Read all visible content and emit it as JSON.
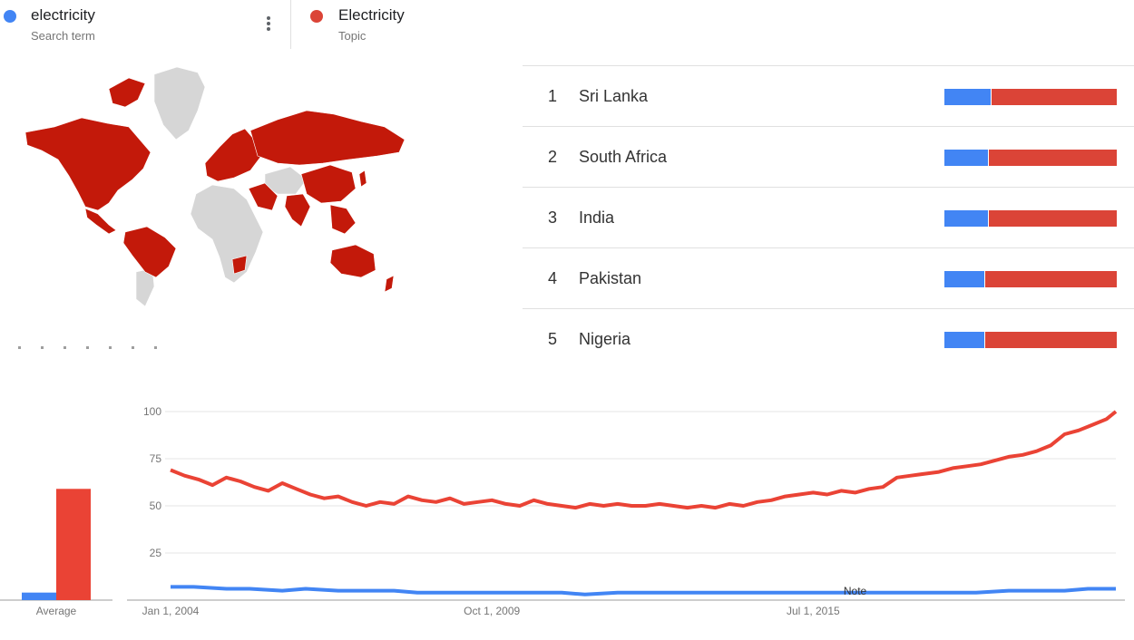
{
  "colors": {
    "series_a": "#4285f4",
    "series_b": "#ea4335",
    "map_fill": "#c3190a",
    "map_other": "#d6d6d6"
  },
  "terms": [
    {
      "name": "electricity",
      "kind": "Search term",
      "color": "#4285f4"
    },
    {
      "name": "Electricity",
      "kind": "Topic",
      "color": "#db4437"
    }
  ],
  "map": {
    "fill_color": "#c3190a",
    "no_data_color": "#d6d6d6"
  },
  "ranking": [
    {
      "rank": "1",
      "country": "Sri Lanka",
      "share_a": 0.27
    },
    {
      "rank": "2",
      "country": "South Africa",
      "share_a": 0.25
    },
    {
      "rank": "3",
      "country": "India",
      "share_a": 0.25
    },
    {
      "rank": "4",
      "country": "Pakistan",
      "share_a": 0.23
    },
    {
      "rank": "5",
      "country": "Nigeria",
      "share_a": 0.23
    }
  ],
  "chart_data": [
    {
      "type": "bar",
      "categories": [
        "Average"
      ],
      "series": [
        {
          "values": [
            4
          ]
        },
        {
          "values": [
            59
          ]
        }
      ],
      "ylim": [
        0,
        100
      ]
    },
    {
      "type": "line",
      "x_tick_labels": [
        "Jan 1, 2004",
        "Oct 1, 2009",
        "Jul 1, 2015"
      ],
      "x_tick_dates": [
        "2004-01",
        "2009-10",
        "2015-07"
      ],
      "yticks": [
        "25",
        "50",
        "75",
        "100"
      ],
      "ylim": [
        0,
        100
      ],
      "xlim": [
        "2004-01",
        "2020-12"
      ],
      "grid": true,
      "annotation": "Note",
      "annotation_date": "2016-04",
      "series": [
        {
          "color": "#4285f4",
          "points": [
            [
              "2004-01",
              7
            ],
            [
              "2004-06",
              7
            ],
            [
              "2005-01",
              6
            ],
            [
              "2005-06",
              6
            ],
            [
              "2006-01",
              5
            ],
            [
              "2006-06",
              6
            ],
            [
              "2007-01",
              5
            ],
            [
              "2007-06",
              5
            ],
            [
              "2008-01",
              5
            ],
            [
              "2008-06",
              4
            ],
            [
              "2009-01",
              4
            ],
            [
              "2009-06",
              4
            ],
            [
              "2010-01",
              4
            ],
            [
              "2010-06",
              4
            ],
            [
              "2011-01",
              4
            ],
            [
              "2011-06",
              3
            ],
            [
              "2012-01",
              4
            ],
            [
              "2012-06",
              4
            ],
            [
              "2013-01",
              4
            ],
            [
              "2013-06",
              4
            ],
            [
              "2014-01",
              4
            ],
            [
              "2014-06",
              4
            ],
            [
              "2015-01",
              4
            ],
            [
              "2015-06",
              4
            ],
            [
              "2016-01",
              4
            ],
            [
              "2016-06",
              4
            ],
            [
              "2017-01",
              4
            ],
            [
              "2017-06",
              4
            ],
            [
              "2018-01",
              4
            ],
            [
              "2018-06",
              4
            ],
            [
              "2019-01",
              5
            ],
            [
              "2019-06",
              5
            ],
            [
              "2020-01",
              5
            ],
            [
              "2020-06",
              6
            ],
            [
              "2020-12",
              6
            ]
          ]
        },
        {
          "color": "#ea4335",
          "points": [
            [
              "2004-01",
              69
            ],
            [
              "2004-04",
              66
            ],
            [
              "2004-07",
              64
            ],
            [
              "2004-10",
              61
            ],
            [
              "2005-01",
              65
            ],
            [
              "2005-04",
              63
            ],
            [
              "2005-07",
              60
            ],
            [
              "2005-10",
              58
            ],
            [
              "2006-01",
              62
            ],
            [
              "2006-04",
              59
            ],
            [
              "2006-07",
              56
            ],
            [
              "2006-10",
              54
            ],
            [
              "2007-01",
              55
            ],
            [
              "2007-04",
              52
            ],
            [
              "2007-07",
              50
            ],
            [
              "2007-10",
              52
            ],
            [
              "2008-01",
              51
            ],
            [
              "2008-04",
              55
            ],
            [
              "2008-07",
              53
            ],
            [
              "2008-10",
              52
            ],
            [
              "2009-01",
              54
            ],
            [
              "2009-04",
              51
            ],
            [
              "2009-07",
              52
            ],
            [
              "2009-10",
              53
            ],
            [
              "2010-01",
              51
            ],
            [
              "2010-04",
              50
            ],
            [
              "2010-07",
              53
            ],
            [
              "2010-10",
              51
            ],
            [
              "2011-01",
              50
            ],
            [
              "2011-04",
              49
            ],
            [
              "2011-07",
              51
            ],
            [
              "2011-10",
              50
            ],
            [
              "2012-01",
              51
            ],
            [
              "2012-04",
              50
            ],
            [
              "2012-07",
              50
            ],
            [
              "2012-10",
              51
            ],
            [
              "2013-01",
              50
            ],
            [
              "2013-04",
              49
            ],
            [
              "2013-07",
              50
            ],
            [
              "2013-10",
              49
            ],
            [
              "2014-01",
              51
            ],
            [
              "2014-04",
              50
            ],
            [
              "2014-07",
              52
            ],
            [
              "2014-10",
              53
            ],
            [
              "2015-01",
              55
            ],
            [
              "2015-04",
              56
            ],
            [
              "2015-07",
              57
            ],
            [
              "2015-10",
              56
            ],
            [
              "2016-01",
              58
            ],
            [
              "2016-04",
              57
            ],
            [
              "2016-07",
              59
            ],
            [
              "2016-10",
              60
            ],
            [
              "2017-01",
              65
            ],
            [
              "2017-04",
              66
            ],
            [
              "2017-07",
              67
            ],
            [
              "2017-10",
              68
            ],
            [
              "2018-01",
              70
            ],
            [
              "2018-04",
              71
            ],
            [
              "2018-07",
              72
            ],
            [
              "2018-10",
              74
            ],
            [
              "2019-01",
              76
            ],
            [
              "2019-04",
              77
            ],
            [
              "2019-07",
              79
            ],
            [
              "2019-10",
              82
            ],
            [
              "2020-01",
              88
            ],
            [
              "2020-04",
              90
            ],
            [
              "2020-07",
              93
            ],
            [
              "2020-10",
              96
            ],
            [
              "2020-12",
              100
            ]
          ]
        }
      ]
    }
  ]
}
